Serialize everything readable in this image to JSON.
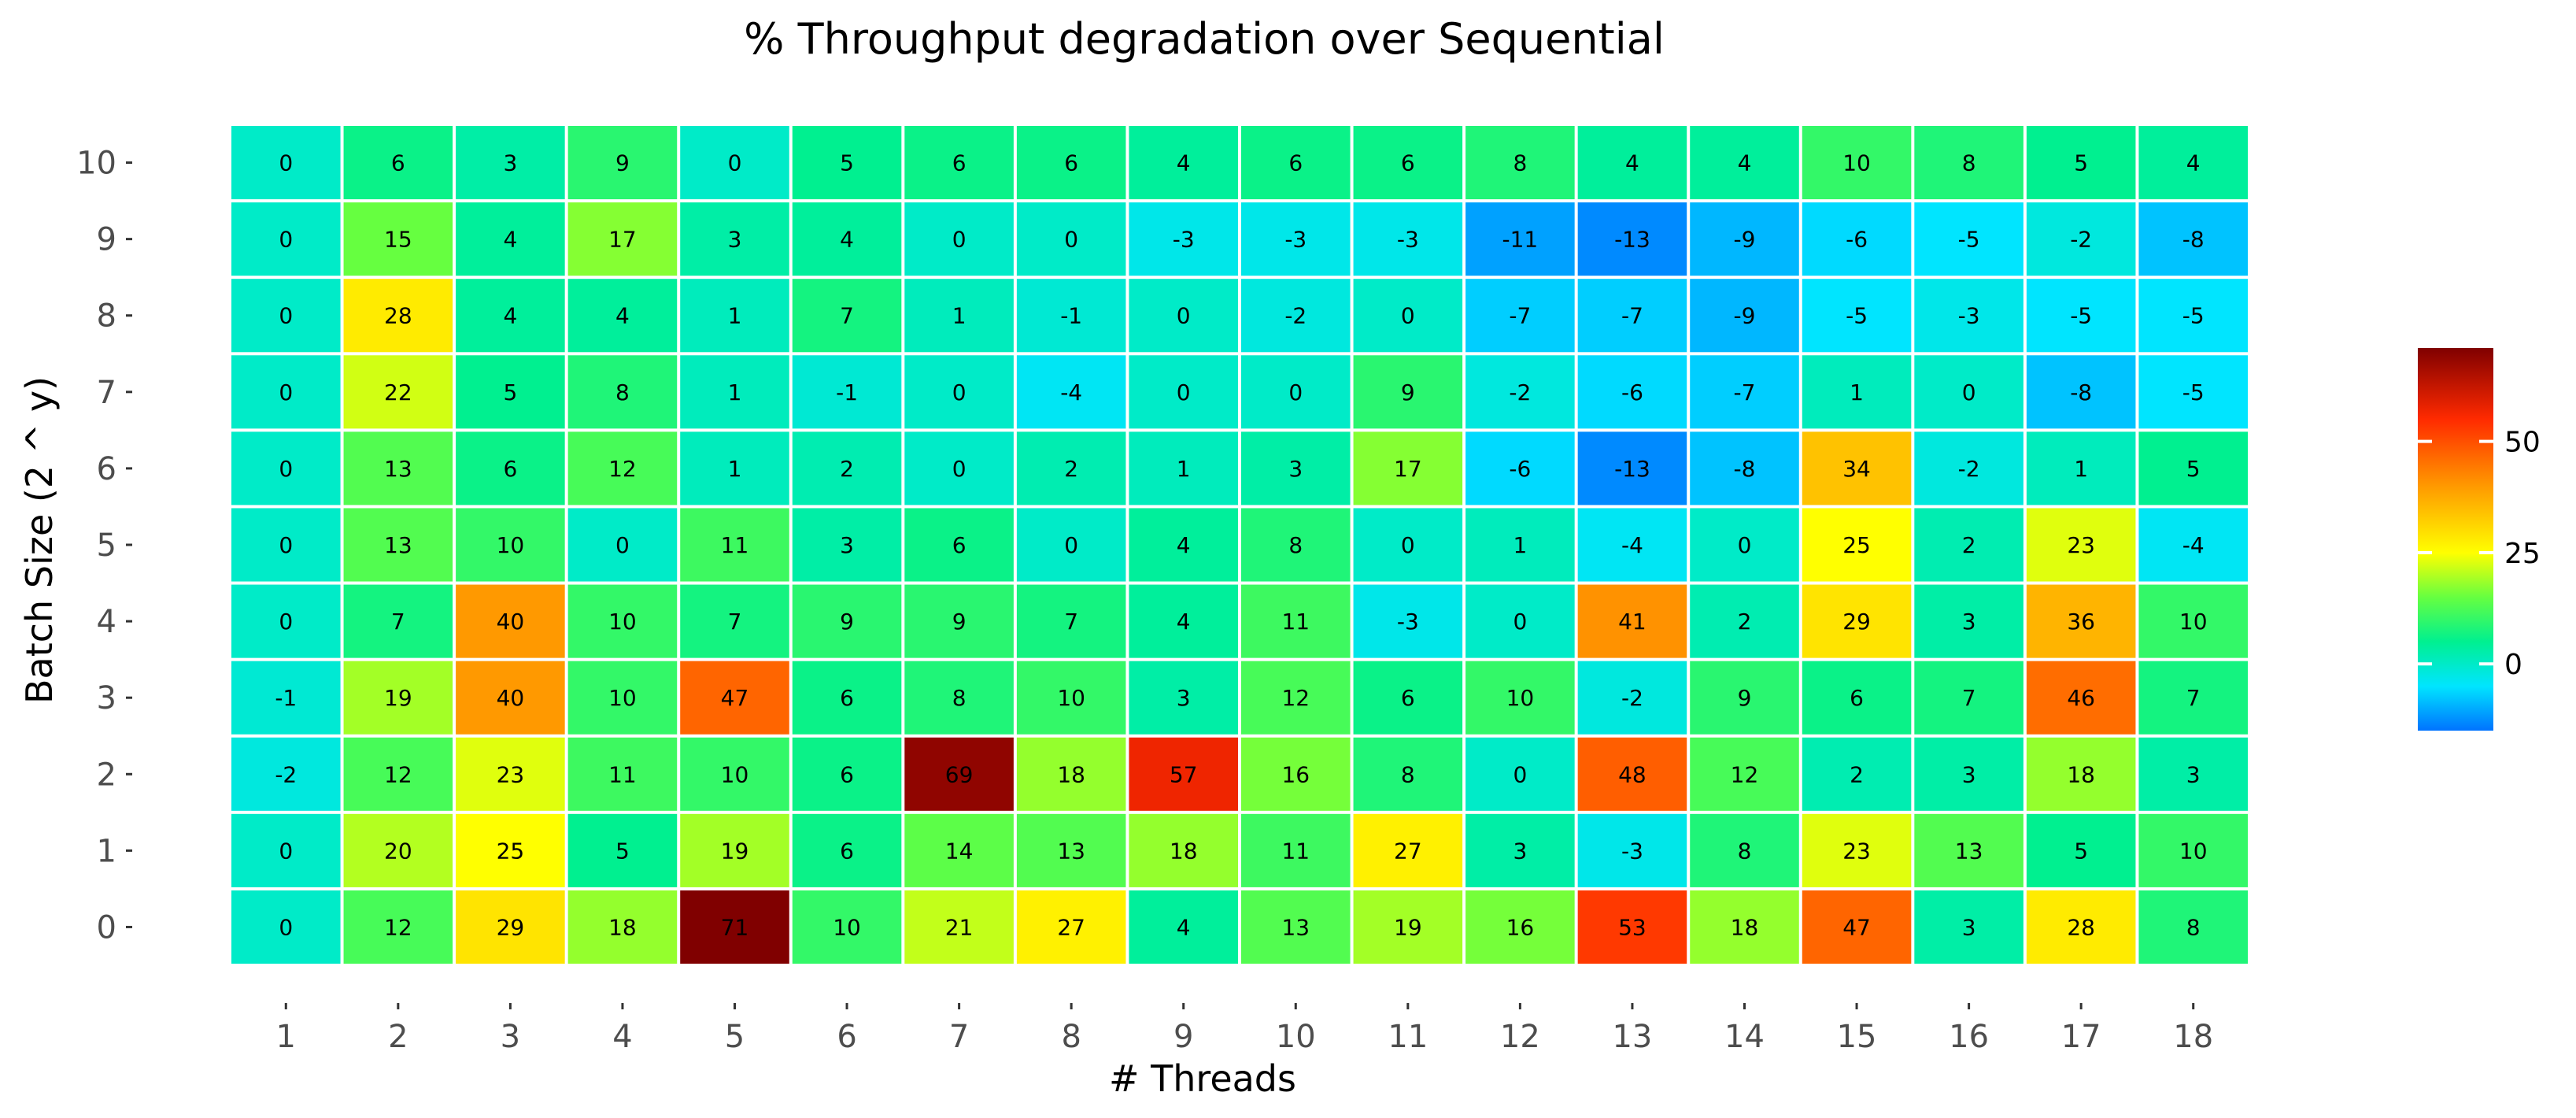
{
  "chart_data": {
    "type": "heatmap",
    "title": "% Throughput degradation over Sequential",
    "xlabel": "# Threads",
    "ylabel": "Batch Size (2 ^ y)",
    "x": [
      "1",
      "2",
      "3",
      "4",
      "5",
      "6",
      "7",
      "8",
      "9",
      "10",
      "11",
      "12",
      "13",
      "14",
      "15",
      "16",
      "17",
      "18"
    ],
    "y": [
      "0",
      "1",
      "2",
      "3",
      "4",
      "5",
      "6",
      "7",
      "8",
      "9",
      "10"
    ],
    "values": [
      [
        0,
        12,
        29,
        18,
        71,
        10,
        21,
        27,
        4,
        13,
        19,
        16,
        53,
        18,
        47,
        3,
        28,
        8
      ],
      [
        0,
        20,
        25,
        5,
        19,
        6,
        14,
        13,
        18,
        11,
        27,
        3,
        -3,
        8,
        23,
        13,
        5,
        10
      ],
      [
        -2,
        12,
        23,
        11,
        10,
        6,
        69,
        18,
        57,
        16,
        8,
        0,
        48,
        12,
        2,
        3,
        18,
        3
      ],
      [
        -1,
        19,
        40,
        10,
        47,
        6,
        8,
        10,
        3,
        12,
        6,
        10,
        -2,
        9,
        6,
        7,
        46,
        7
      ],
      [
        0,
        7,
        40,
        10,
        7,
        9,
        9,
        7,
        4,
        11,
        -3,
        0,
        41,
        2,
        29,
        3,
        36,
        10
      ],
      [
        0,
        13,
        10,
        0,
        11,
        3,
        6,
        0,
        4,
        8,
        0,
        1,
        -4,
        0,
        25,
        2,
        23,
        -4
      ],
      [
        0,
        13,
        6,
        12,
        1,
        2,
        0,
        2,
        1,
        3,
        17,
        -6,
        -13,
        -8,
        34,
        -2,
        1,
        5
      ],
      [
        0,
        22,
        5,
        8,
        1,
        -1,
        0,
        -4,
        0,
        0,
        9,
        -2,
        -6,
        -7,
        1,
        0,
        -8,
        -5
      ],
      [
        0,
        28,
        4,
        4,
        1,
        7,
        1,
        -1,
        0,
        -2,
        0,
        -7,
        -7,
        -9,
        -5,
        -3,
        -5,
        -5
      ],
      [
        0,
        15,
        4,
        17,
        3,
        4,
        0,
        0,
        -3,
        -3,
        -3,
        -11,
        -13,
        -9,
        -6,
        -5,
        -2,
        -8
      ],
      [
        0,
        6,
        3,
        9,
        0,
        5,
        6,
        6,
        4,
        6,
        6,
        8,
        4,
        4,
        10,
        8,
        5,
        4
      ]
    ],
    "legend": {
      "placement": "right",
      "ticks": [
        50,
        25,
        0
      ],
      "range": [
        -15,
        71
      ]
    },
    "colors": {
      "scale": [
        "#0073ff",
        "#00e5ff",
        "#00f090",
        "#66ff40",
        "#ffff00",
        "#ff9900",
        "#ff2a00",
        "#800000"
      ]
    }
  }
}
